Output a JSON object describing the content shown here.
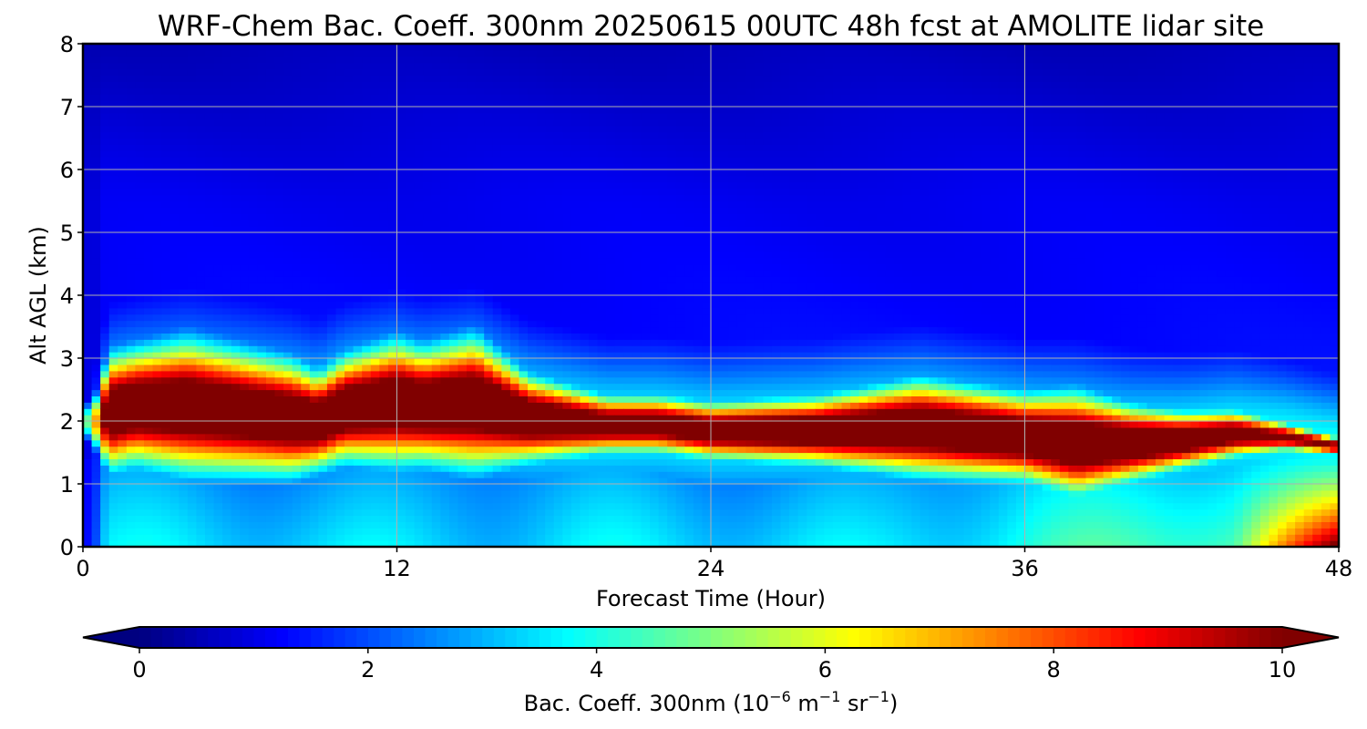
{
  "chart_data": {
    "type": "heatmap",
    "title": "WRF-Chem Bac. Coeff. 300nm  20250615 00UTC 48h fcst at AMOLITE lidar site",
    "xlabel": "Forecast Time (Hour)",
    "ylabel": "Alt AGL (km)",
    "xlim": [
      0,
      48
    ],
    "ylim": [
      0,
      8
    ],
    "xticks": [
      "0",
      "12",
      "24",
      "36",
      "48"
    ],
    "yticks": [
      "0",
      "1",
      "2",
      "3",
      "4",
      "5",
      "6",
      "7",
      "8"
    ],
    "grid": true,
    "colormap": "jet",
    "colorbar": {
      "label_main": "Bac. Coeff. 300nm  (10",
      "label_exp1": "−6",
      "label_mid": " m",
      "label_exp2": "−1",
      "label_mid2": " sr",
      "label_exp3": "−1",
      "label_end": ")",
      "vmin": 0,
      "vmax": 10,
      "ticks": [
        "0",
        "2",
        "4",
        "6",
        "8",
        "10"
      ],
      "extend": "both",
      "orientation": "horizontal"
    },
    "profile": {
      "time_h": [
        0,
        0.5,
        1,
        2,
        4,
        6,
        8,
        9,
        10,
        12,
        13,
        15,
        17,
        20,
        22,
        24,
        28,
        32,
        36,
        38,
        40,
        42,
        44,
        46,
        48
      ],
      "peak_alt_km": [
        2.0,
        2.0,
        2.15,
        2.25,
        2.25,
        2.15,
        2.05,
        2.0,
        2.2,
        2.3,
        2.25,
        2.3,
        2.05,
        1.95,
        1.95,
        1.85,
        1.85,
        1.9,
        1.75,
        1.65,
        1.65,
        1.7,
        1.8,
        1.75,
        1.6
      ],
      "layer_halfwidth_km": [
        0.15,
        0.3,
        0.6,
        0.6,
        0.7,
        0.65,
        0.6,
        0.5,
        0.55,
        0.65,
        0.6,
        0.7,
        0.45,
        0.3,
        0.3,
        0.3,
        0.35,
        0.5,
        0.45,
        0.55,
        0.4,
        0.3,
        0.25,
        0.15,
        0.1
      ],
      "peak_value": [
        3.5,
        7.0,
        11.0,
        11.0,
        11.0,
        11.0,
        11.0,
        11.0,
        11.0,
        11.0,
        11.0,
        11.0,
        11.0,
        10.5,
        10.5,
        10.6,
        11.0,
        11.0,
        11.0,
        11.0,
        11.0,
        10.8,
        10.3,
        9.5,
        9.3
      ]
    }
  }
}
